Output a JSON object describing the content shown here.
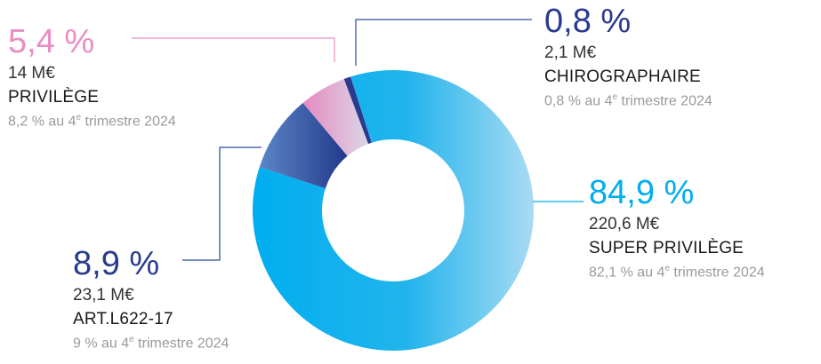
{
  "colors": {
    "super_privilege": "#00aeef",
    "art_l622_17": "#2a4a9a",
    "privilege": "#e88ec2",
    "chirographaire": "#2a3a8c",
    "leader_lines": "#2a4a9a",
    "privilege_line": "#e88ec2",
    "super_line": "#00aeef"
  },
  "chart_data": {
    "type": "pie",
    "variant": "donut",
    "title": "",
    "slices": [
      {
        "key": "super_privilege",
        "label": "SUPER PRIVILÈGE",
        "value": 84.9,
        "pct_label": "84,9 %",
        "amount": "220,6 M€",
        "prev_prefix": "82,1 % au 4",
        "prev_sup": "e",
        "prev_suffix": " trimestre 2024"
      },
      {
        "key": "art_l622_17",
        "label": "ART.L622-17",
        "value": 8.9,
        "pct_label": "8,9 %",
        "amount": "23,1 M€",
        "prev_prefix": "9 % au 4",
        "prev_sup": "e",
        "prev_suffix": " trimestre 2024"
      },
      {
        "key": "privilege",
        "label": "PRIVILÈGE",
        "value": 5.4,
        "pct_label": "5,4 %",
        "amount": "14 M€",
        "prev_prefix": "8,2 % au 4",
        "prev_sup": "e",
        "prev_suffix": " trimestre 2024"
      },
      {
        "key": "chirographaire",
        "label": "CHIROGRAPHAIRE",
        "value": 0.8,
        "pct_label": "0,8 %",
        "amount": "2,1 M€",
        "prev_prefix": "0,8 % au 4",
        "prev_sup": "e",
        "prev_suffix": " trimestre 2024"
      }
    ]
  }
}
